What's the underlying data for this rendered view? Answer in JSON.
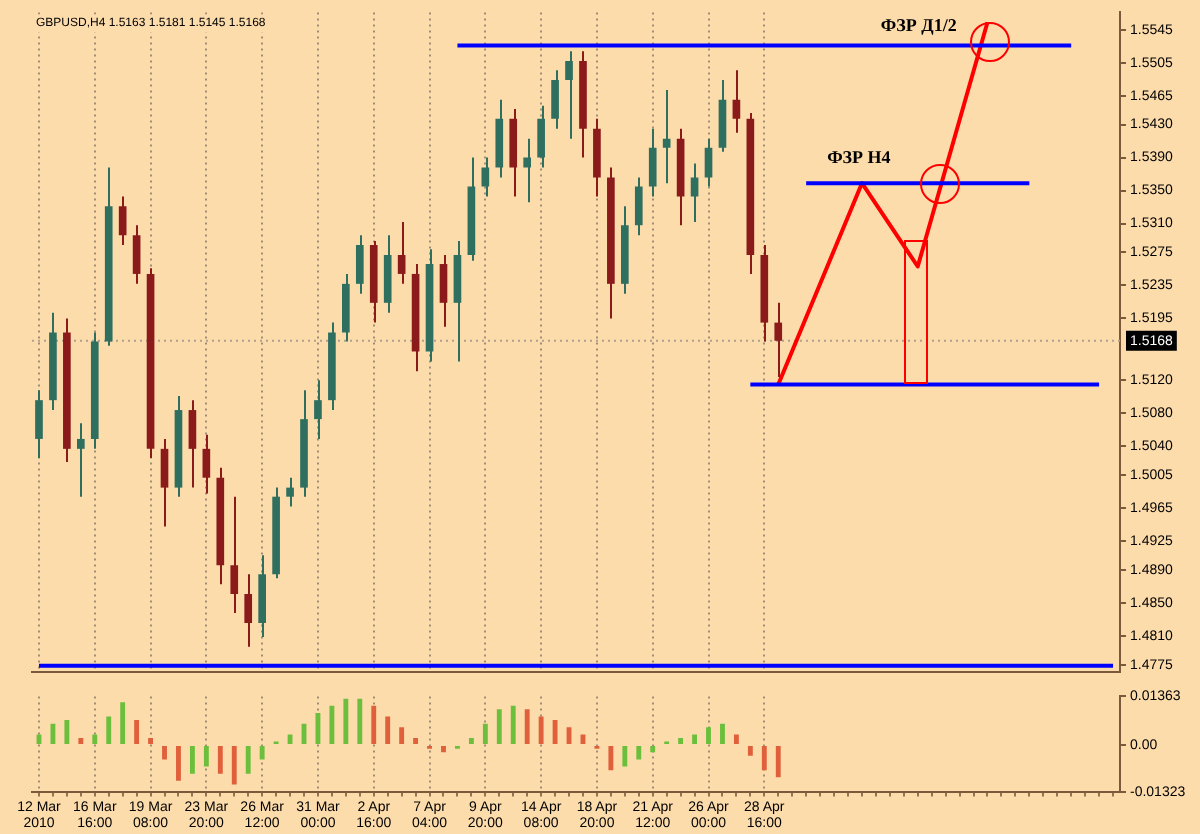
{
  "chart_data": [
    {
      "type": "candlestick",
      "title": "GBPUSD,H4 1.5163 1.5181 1.5145 1.5168",
      "categories": [
        null,
        null,
        null,
        null,
        null,
        null,
        null,
        null,
        null,
        null,
        null,
        null,
        null,
        null,
        null,
        null,
        null,
        null,
        null,
        null,
        null,
        null,
        null,
        null,
        null,
        null,
        null,
        null,
        null,
        null,
        null,
        null,
        null,
        null,
        null,
        null,
        null,
        null,
        null,
        null,
        null,
        null,
        null,
        null,
        null,
        null,
        null,
        null,
        null,
        null,
        null,
        null,
        null,
        null,
        null,
        null,
        null,
        null,
        null,
        null,
        null,
        null,
        null,
        null,
        null,
        null,
        null,
        null,
        null,
        null,
        null,
        null,
        null,
        null,
        null,
        null,
        null,
        null
      ],
      "ohlc": [
        [
          1.5049,
          1.5108,
          1.5026,
          1.5096
        ],
        [
          1.5096,
          1.5202,
          1.5084,
          1.5178
        ],
        [
          1.5178,
          1.5195,
          1.5021,
          1.5037
        ],
        [
          1.5037,
          1.5068,
          1.4979,
          1.5049
        ],
        [
          1.5049,
          1.5178,
          1.5037,
          1.5167
        ],
        [
          1.5167,
          1.5378,
          1.5162,
          1.5331
        ],
        [
          1.5331,
          1.5343,
          1.5284,
          1.5296
        ],
        [
          1.5296,
          1.5308,
          1.5237,
          1.5249
        ],
        [
          1.5249,
          1.5256,
          1.5026,
          1.5037
        ],
        [
          1.5037,
          1.5049,
          1.4943,
          1.499
        ],
        [
          1.499,
          1.5101,
          1.4979,
          1.5084
        ],
        [
          1.5084,
          1.5096,
          1.499,
          1.5037
        ],
        [
          1.5037,
          1.5054,
          1.4983,
          1.5002
        ],
        [
          1.5002,
          1.5014,
          1.4873,
          1.4896
        ],
        [
          1.4896,
          1.4979,
          1.4838,
          1.4861
        ],
        [
          1.4861,
          1.4885,
          1.4797,
          1.4826
        ],
        [
          1.4826,
          1.4908,
          1.4809,
          1.4885
        ],
        [
          1.4885,
          1.499,
          1.488,
          1.4979
        ],
        [
          1.4979,
          1.5002,
          1.4967,
          1.499
        ],
        [
          1.499,
          1.5108,
          1.4979,
          1.5073
        ],
        [
          1.5073,
          1.512,
          1.5049,
          1.5096
        ],
        [
          1.5096,
          1.519,
          1.5084,
          1.5178
        ],
        [
          1.5178,
          1.5249,
          1.5167,
          1.5237
        ],
        [
          1.5237,
          1.5296,
          1.5225,
          1.5284
        ],
        [
          1.5284,
          1.5289,
          1.519,
          1.5214
        ],
        [
          1.5214,
          1.5296,
          1.5202,
          1.5272
        ],
        [
          1.5272,
          1.5312,
          1.5237,
          1.5249
        ],
        [
          1.5249,
          1.5261,
          1.5131,
          1.5155
        ],
        [
          1.5155,
          1.5279,
          1.5143,
          1.5261
        ],
        [
          1.5261,
          1.5272,
          1.5185,
          1.5214
        ],
        [
          1.5214,
          1.5289,
          1.5143,
          1.5272
        ],
        [
          1.5272,
          1.539,
          1.5265,
          1.5355
        ],
        [
          1.5355,
          1.539,
          1.5343,
          1.5378
        ],
        [
          1.5378,
          1.546,
          1.5366,
          1.5437
        ],
        [
          1.5437,
          1.5449,
          1.5343,
          1.5378
        ],
        [
          1.5378,
          1.5413,
          1.5336,
          1.539
        ],
        [
          1.539,
          1.5453,
          1.5378,
          1.5437
        ],
        [
          1.5437,
          1.5496,
          1.5425,
          1.5484
        ],
        [
          1.5484,
          1.5519,
          1.5413,
          1.5507
        ],
        [
          1.5507,
          1.5519,
          1.539,
          1.5425
        ],
        [
          1.5425,
          1.5437,
          1.5343,
          1.5366
        ],
        [
          1.5366,
          1.5378,
          1.5195,
          1.5237
        ],
        [
          1.5237,
          1.5331,
          1.5225,
          1.5308
        ],
        [
          1.5308,
          1.5366,
          1.5296,
          1.5355
        ],
        [
          1.5355,
          1.5425,
          1.5343,
          1.5402
        ],
        [
          1.5402,
          1.5472,
          1.5359,
          1.5413
        ],
        [
          1.5413,
          1.5425,
          1.5308,
          1.5343
        ],
        [
          1.5343,
          1.5383,
          1.5312,
          1.5366
        ],
        [
          1.5366,
          1.5413,
          1.5355,
          1.5402
        ],
        [
          1.5402,
          1.5484,
          1.5397,
          1.546
        ],
        [
          1.546,
          1.5496,
          1.542,
          1.5437
        ],
        [
          1.5437,
          1.5444,
          1.5249,
          1.5272
        ],
        [
          1.5272,
          1.5284,
          1.5167,
          1.519
        ],
        [
          1.519,
          1.5214,
          1.5124,
          1.5168
        ],
        null,
        null,
        null,
        null,
        null,
        null,
        null,
        null,
        null,
        null,
        null,
        null,
        null,
        null,
        null,
        null,
        null,
        null,
        null,
        null,
        null,
        null,
        null,
        null
      ],
      "colors": [
        "#2f6f5f",
        "#2f6f5f",
        "#8b1a1a",
        "#2f6f5f",
        "#2f6f5f",
        "#2f6f5f",
        "#8b1a1a",
        "#8b1a1a",
        "#8b1a1a",
        "#8b1a1a",
        "#2f6f5f",
        "#8b1a1a",
        "#8b1a1a",
        "#8b1a1a",
        "#8b1a1a",
        "#8b1a1a",
        "#2f6f5f",
        "#2f6f5f",
        "#2f6f5f",
        "#2f6f5f",
        "#2f6f5f",
        "#2f6f5f",
        "#2f6f5f",
        "#2f6f5f",
        "#8b1a1a",
        "#2f6f5f",
        "#8b1a1a",
        "#8b1a1a",
        "#2f6f5f",
        "#8b1a1a",
        "#2f6f5f",
        "#2f6f5f",
        "#2f6f5f",
        "#2f6f5f",
        "#8b1a1a",
        "#2f6f5f",
        "#2f6f5f",
        "#2f6f5f",
        "#2f6f5f",
        "#8b1a1a",
        "#8b1a1a",
        "#8b1a1a",
        "#2f6f5f",
        "#2f6f5f",
        "#2f6f5f",
        "#2f6f5f",
        "#8b1a1a",
        "#2f6f5f",
        "#2f6f5f",
        "#2f6f5f",
        "#8b1a1a",
        "#8b1a1a",
        "#8b1a1a",
        "#8b1a1a",
        null,
        null,
        null,
        null,
        null,
        null,
        null,
        null,
        null,
        null,
        null,
        null,
        null,
        null,
        null,
        null,
        null,
        null,
        null,
        null,
        null,
        null,
        null,
        null
      ],
      "series": [
        {
          "type": "line",
          "color": "#0000ff",
          "values": [
            null,
            null,
            null,
            null,
            null,
            null,
            null,
            null,
            null,
            null,
            null,
            null,
            null,
            null,
            null,
            null,
            null,
            null,
            null,
            null,
            null,
            null,
            null,
            null,
            null,
            null,
            null,
            null,
            null,
            null,
            1.5526,
            null,
            null,
            null,
            null,
            null,
            null,
            null,
            null,
            null,
            null,
            null,
            null,
            null,
            null,
            null,
            null,
            null,
            null,
            null,
            null,
            null,
            null,
            null,
            null,
            null,
            null,
            null,
            null,
            null,
            null,
            null,
            null,
            null,
            null,
            null,
            null,
            null,
            null,
            null,
            null,
            null,
            null,
            null,
            1.5526,
            null,
            null,
            null
          ]
        },
        {
          "type": "line",
          "color": "#0000ff",
          "values": [
            null,
            null,
            null,
            null,
            null,
            null,
            null,
            null,
            null,
            null,
            null,
            null,
            null,
            null,
            null,
            null,
            null,
            null,
            null,
            null,
            null,
            null,
            null,
            null,
            null,
            null,
            null,
            null,
            null,
            null,
            null,
            null,
            null,
            null,
            null,
            null,
            null,
            null,
            null,
            null,
            null,
            null,
            null,
            null,
            null,
            null,
            null,
            null,
            null,
            null,
            null,
            null,
            null,
            null,
            null,
            1.5359,
            null,
            null,
            null,
            null,
            null,
            null,
            null,
            null,
            null,
            null,
            null,
            null,
            null,
            null,
            null,
            1.5359,
            null,
            null,
            null,
            null,
            null,
            null
          ]
        },
        {
          "type": "line",
          "color": "#0000ff",
          "values": [
            null,
            null,
            null,
            null,
            null,
            null,
            null,
            null,
            null,
            null,
            null,
            null,
            null,
            null,
            null,
            null,
            null,
            null,
            null,
            null,
            null,
            null,
            null,
            null,
            null,
            null,
            null,
            null,
            null,
            null,
            null,
            null,
            null,
            null,
            null,
            null,
            null,
            null,
            null,
            null,
            null,
            null,
            null,
            null,
            null,
            null,
            null,
            null,
            null,
            null,
            null,
            1.5115,
            null,
            null,
            null,
            null,
            null,
            null,
            null,
            null,
            null,
            null,
            null,
            null,
            null,
            null,
            null,
            null,
            null,
            null,
            null,
            null,
            null,
            null,
            null,
            null,
            1.5115,
            null
          ]
        },
        {
          "type": "line",
          "color": "#0000ff",
          "values": [
            1.4774,
            null,
            null,
            null,
            null,
            null,
            null,
            null,
            null,
            null,
            null,
            null,
            null,
            null,
            null,
            null,
            null,
            null,
            null,
            null,
            null,
            null,
            null,
            null,
            null,
            null,
            null,
            null,
            null,
            null,
            null,
            null,
            null,
            null,
            null,
            null,
            null,
            null,
            null,
            null,
            null,
            null,
            null,
            null,
            null,
            null,
            null,
            null,
            null,
            null,
            null,
            null,
            null,
            null,
            null,
            null,
            null,
            null,
            null,
            null,
            null,
            null,
            null,
            null,
            null,
            null,
            null,
            null,
            null,
            null,
            null,
            null,
            null,
            null,
            null,
            null,
            null,
            1.4774
          ]
        },
        {
          "type": "line",
          "color": "#ff0000",
          "values": [
            null,
            null,
            null,
            null,
            null,
            null,
            null,
            null,
            null,
            null,
            null,
            null,
            null,
            null,
            null,
            null,
            null,
            null,
            null,
            null,
            null,
            null,
            null,
            null,
            null,
            null,
            null,
            null,
            null,
            null,
            null,
            null,
            null,
            null,
            null,
            null,
            null,
            null,
            null,
            null,
            null,
            null,
            null,
            null,
            null,
            null,
            null,
            null,
            null,
            null,
            null,
            null,
            null,
            1.5115,
            null,
            null,
            null,
            null,
            null,
            1.5359,
            null,
            null,
            null,
            1.5258,
            null,
            null,
            null,
            null,
            1.5554,
            null,
            null,
            null,
            null,
            null,
            null,
            null,
            null,
            null
          ]
        }
      ],
      "ref_lines": [
        {
          "axis": "y",
          "value": 1.5168,
          "label": "1.5168",
          "color": "#b0a090",
          "line_style": "dotted"
        }
      ],
      "annotations": [
        "ФЗР Д1/2",
        "ФЗР H4"
      ],
      "ylim": [
        1.4767,
        1.5566
      ],
      "yticks": [
        {
          "value": 1.5545,
          "label": "1.5545"
        },
        {
          "value": 1.5505,
          "label": "1.5505"
        },
        {
          "value": 1.5465,
          "label": "1.5465"
        },
        {
          "value": 1.543,
          "label": "1.5430"
        },
        {
          "value": 1.539,
          "label": "1.5390"
        },
        {
          "value": 1.535,
          "label": "1.5350"
        },
        {
          "value": 1.531,
          "label": "1.5310"
        },
        {
          "value": 1.5275,
          "label": "1.5275"
        },
        {
          "value": 1.5235,
          "label": "1.5235"
        },
        {
          "value": 1.5195,
          "label": "1.5195"
        },
        {
          "value": 1.512,
          "label": "1.5120"
        },
        {
          "value": 1.508,
          "label": "1.5080"
        },
        {
          "value": 1.504,
          "label": "1.5040"
        },
        {
          "value": 1.5005,
          "label": "1.5005"
        },
        {
          "value": 1.4965,
          "label": "1.4965"
        },
        {
          "value": 1.4925,
          "label": "1.4925"
        },
        {
          "value": 1.489,
          "label": "1.4890"
        },
        {
          "value": 1.485,
          "label": "1.4850"
        },
        {
          "value": 1.481,
          "label": "1.4810"
        },
        {
          "value": 1.4775,
          "label": "1.4775"
        }
      ],
      "grid": "x",
      "tick_labels": "y"
    },
    {
      "type": "bar",
      "categories": [
        "12 Mar 2010",
        null,
        null,
        null,
        "16 Mar 16:00",
        null,
        null,
        null,
        "19 Mar 08:00",
        null,
        null,
        null,
        "23 Mar 20:00",
        null,
        null,
        null,
        "26 Mar 12:00",
        null,
        null,
        null,
        "31 Mar 00:00",
        null,
        null,
        null,
        "2 Apr 16:00",
        null,
        null,
        null,
        "7 Apr 04:00",
        null,
        null,
        null,
        "9 Apr 20:00",
        null,
        null,
        null,
        "14 Apr 08:00",
        null,
        null,
        null,
        "18 Apr 20:00",
        null,
        null,
        null,
        "21 Apr 12:00",
        null,
        null,
        null,
        "26 Apr 00:00",
        null,
        null,
        null,
        "28 Apr 16:00",
        null,
        null,
        null,
        null,
        null,
        null,
        null,
        null,
        null,
        null,
        null,
        null,
        null,
        null,
        null,
        null,
        null,
        null,
        null,
        null,
        null,
        null,
        null,
        null,
        null
      ],
      "values": [
        0.003,
        0.006,
        0.007,
        0.002,
        0.003,
        0.008,
        0.012,
        0.007,
        0.002,
        -0.004,
        -0.01,
        -0.008,
        -0.006,
        -0.008,
        -0.011,
        -0.008,
        -0.004,
        0.001,
        0.003,
        0.006,
        0.009,
        0.011,
        0.013,
        0.013,
        0.011,
        0.008,
        0.005,
        0.002,
        -0.001,
        -0.002,
        -0.001,
        0.002,
        0.006,
        0.01,
        0.011,
        0.01,
        0.008,
        0.007,
        0.005,
        0.003,
        -0.001,
        -0.007,
        -0.006,
        -0.004,
        -0.002,
        0.001,
        0.002,
        0.003,
        0.005,
        0.006,
        0.003,
        -0.003,
        -0.007,
        -0.009,
        null,
        null,
        null,
        null,
        null,
        null,
        null,
        null,
        null,
        null,
        null,
        null,
        null,
        null,
        null,
        null,
        null,
        null,
        null,
        null,
        null,
        null,
        null,
        null
      ],
      "colors": [
        "#6cbf3c",
        "#6cbf3c",
        "#6cbf3c",
        "#e0603c",
        "#6cbf3c",
        "#6cbf3c",
        "#6cbf3c",
        "#e0603c",
        "#e0603c",
        "#e0603c",
        "#e0603c",
        "#6cbf3c",
        "#6cbf3c",
        "#e0603c",
        "#e0603c",
        "#6cbf3c",
        "#6cbf3c",
        "#6cbf3c",
        "#6cbf3c",
        "#6cbf3c",
        "#6cbf3c",
        "#6cbf3c",
        "#6cbf3c",
        "#6cbf3c",
        "#e0603c",
        "#e0603c",
        "#e0603c",
        "#e0603c",
        "#e0603c",
        "#e0603c",
        "#6cbf3c",
        "#6cbf3c",
        "#6cbf3c",
        "#6cbf3c",
        "#6cbf3c",
        "#e0603c",
        "#e0603c",
        "#e0603c",
        "#e0603c",
        "#e0603c",
        "#e0603c",
        "#e0603c",
        "#6cbf3c",
        "#6cbf3c",
        "#6cbf3c",
        "#6cbf3c",
        "#6cbf3c",
        "#6cbf3c",
        "#6cbf3c",
        "#6cbf3c",
        "#e0603c",
        "#e0603c",
        "#e0603c",
        "#e0603c",
        null,
        null,
        null,
        null,
        null,
        null,
        null,
        null,
        null,
        null,
        null,
        null,
        null,
        null,
        null,
        null,
        null,
        null,
        null,
        null,
        null,
        null,
        null,
        null
      ],
      "ylim": [
        -0.01323,
        0.01363
      ],
      "yticks": [
        {
          "value": 0.01363,
          "label": "0.01363"
        },
        {
          "value": 0,
          "label": "0.00"
        },
        {
          "value": -0.01323,
          "label": "-0.01323"
        }
      ],
      "grid": "x"
    }
  ]
}
